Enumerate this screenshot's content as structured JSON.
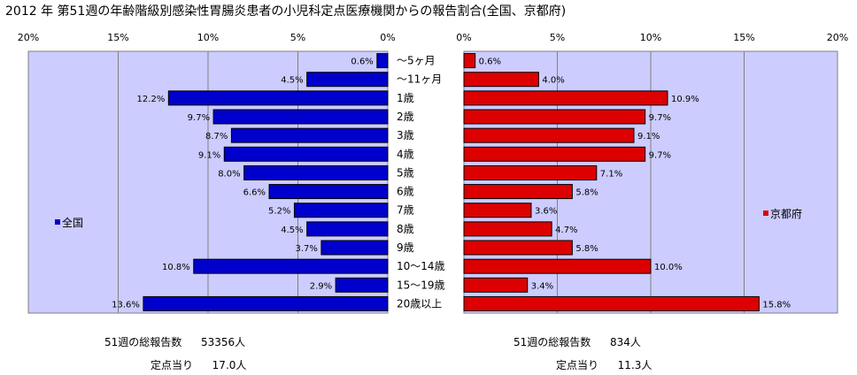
{
  "title": "2012 年 第51週の年齢階級別感染性胃腸炎患者の小児科定点医療機関からの報告割合(全国、京都府)",
  "chart_data": {
    "type": "bar",
    "orientation": "horizontal",
    "categories": [
      "～5ヶ月",
      "～11ヶ月",
      "1歳",
      "2歳",
      "3歳",
      "4歳",
      "5歳",
      "6歳",
      "7歳",
      "8歳",
      "9歳",
      "10～14歳",
      "15～19歳",
      "20歳以上"
    ],
    "series": [
      {
        "name": "全国",
        "color": "#0000cc",
        "values": [
          0.6,
          4.5,
          12.2,
          9.7,
          8.7,
          9.1,
          8.0,
          6.6,
          5.2,
          4.5,
          3.7,
          10.8,
          2.9,
          13.6
        ],
        "labels": [
          "0.6%",
          "4.5%",
          "12.2%",
          "9.7%",
          "8.7%",
          "9.1%",
          "8.0%",
          "6.6%",
          "5.2%",
          "4.5%",
          "3.7%",
          "10.8%",
          "2.9%",
          "13.6%"
        ]
      },
      {
        "name": "京都府",
        "color": "#dd0000",
        "values": [
          0.6,
          4.0,
          10.9,
          9.7,
          9.1,
          9.7,
          7.1,
          5.8,
          3.6,
          4.7,
          5.8,
          10.0,
          3.4,
          15.8
        ],
        "labels": [
          "0.6%",
          "4.0%",
          "10.9%",
          "9.7%",
          "9.1%",
          "9.7%",
          "7.1%",
          "5.8%",
          "3.6%",
          "4.7%",
          "5.8%",
          "10.0%",
          "3.4%",
          "15.8%"
        ]
      }
    ],
    "left_ticks": [
      "20%",
      "15%",
      "10%",
      "5%",
      "0%"
    ],
    "right_ticks": [
      "0%",
      "5%",
      "10%",
      "15%",
      "20%"
    ],
    "xlim": [
      0,
      20
    ],
    "plot_background": "#ccccff",
    "grid": true
  },
  "summary": {
    "national": {
      "total_label": "51週の総報告数",
      "total_value": "53356人",
      "per_label": "定点当り",
      "per_value": "17.0人"
    },
    "kyoto": {
      "total_label": "51週の総報告数",
      "total_value": "834人",
      "per_label": "定点当り",
      "per_value": "11.3人"
    }
  }
}
